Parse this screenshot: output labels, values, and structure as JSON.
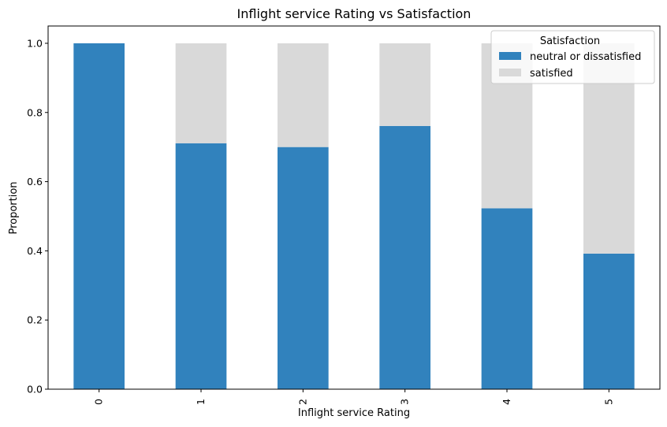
{
  "chart_data": {
    "type": "bar",
    "stacked": true,
    "title": "Inflight service Rating vs Satisfaction",
    "xlabel": "Inflight service Rating",
    "ylabel": "Proportion",
    "categories": [
      "0",
      "1",
      "2",
      "3",
      "4",
      "5"
    ],
    "ylim": [
      0,
      1.05
    ],
    "yticks": [
      "0.0",
      "0.2",
      "0.4",
      "0.6",
      "0.8",
      "1.0"
    ],
    "grid": false,
    "legend": {
      "title": "Satisfaction",
      "placement": "top-right"
    },
    "series": [
      {
        "name": "neutral or dissatisfied",
        "color": "#3182bd",
        "values": [
          1.0,
          0.711,
          0.7,
          0.761,
          0.523,
          0.392
        ]
      },
      {
        "name": "satisfied",
        "color": "#d9d9d9",
        "values": [
          0.0,
          0.289,
          0.3,
          0.239,
          0.477,
          0.608
        ]
      }
    ]
  }
}
